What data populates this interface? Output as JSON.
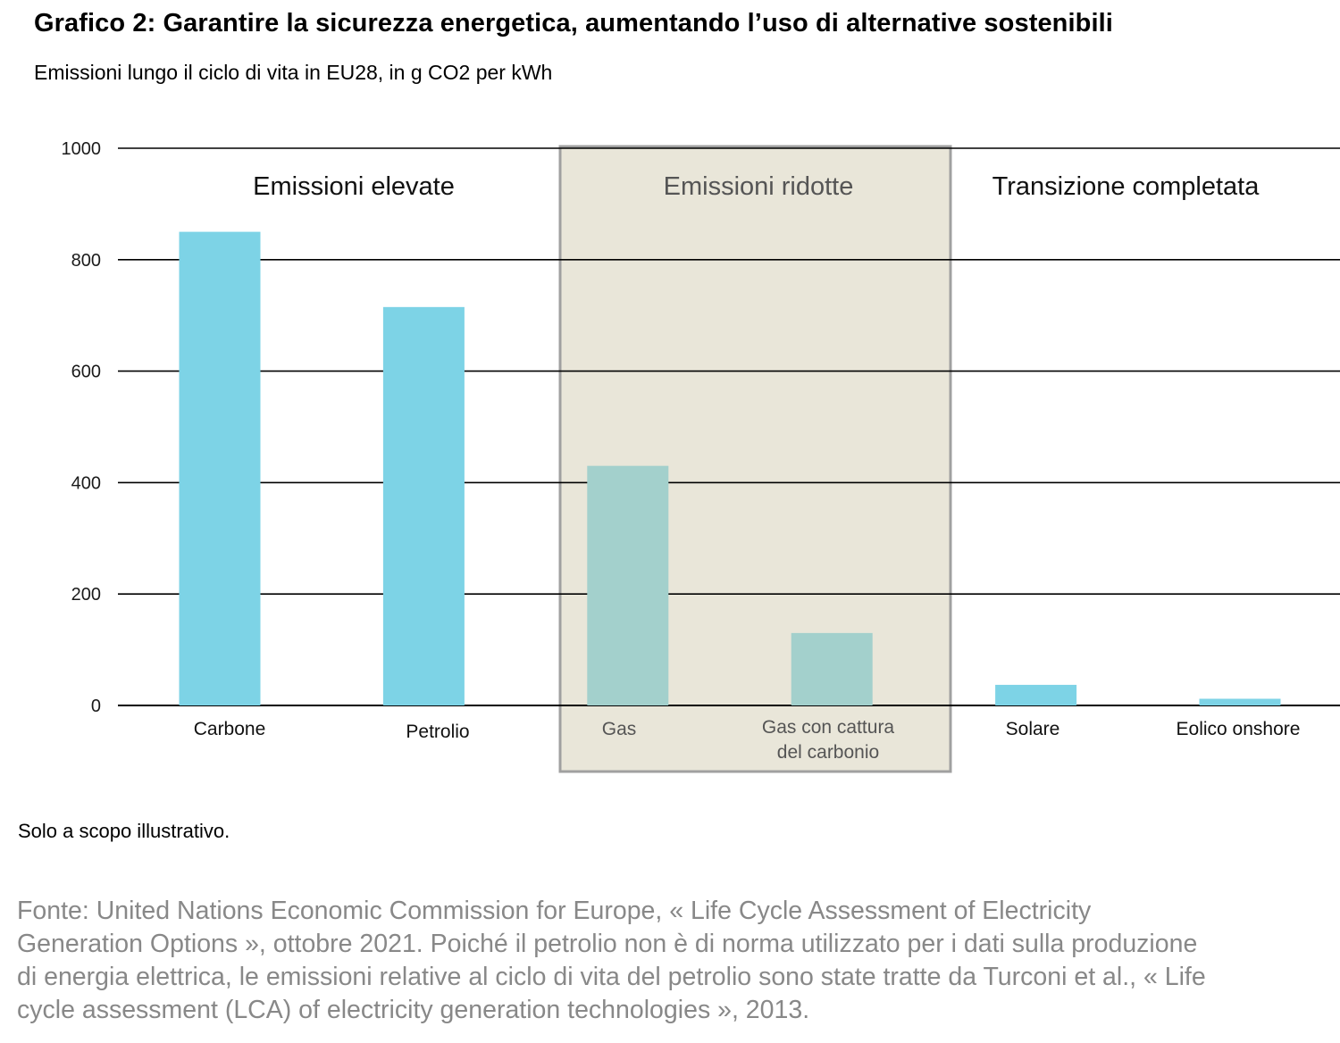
{
  "title": "Grafico 2: Garantire la sicurezza energetica, aumentando l’uso di alternative sostenibili",
  "subtitle": "Emissioni lungo il ciclo di vita in EU28, in g CO2 per kWh",
  "note": "Solo a scopo illustrativo.",
  "source": "Fonte: United Nations Economic Commission for Europe, « Life Cycle Assessment of Electricity Generation Options », ottobre 2021. Poiché il petrolio non è di norma utilizzato per i dati sulla produzione di energia elettrica, le emissioni relative al ciclo di vita del petrolio sono state tratte da Turconi et al., « Life cycle assessment (LCA) of electricity generation technologies », 2013.",
  "colors": {
    "bar": "#7dd3e6",
    "bar_muted": "#a3d0cc",
    "highlight_bg": "#e9e6d9",
    "highlight_border": "#a0a0a0",
    "grid": "#000000"
  },
  "chart_data": {
    "type": "bar",
    "categories": [
      "Carbone",
      "Petrolio",
      "Gas",
      "Gas con cattura del carbonio",
      "Solare",
      "Eolico onshore"
    ],
    "category_lines": [
      [
        "Carbone"
      ],
      [
        "Petrolio"
      ],
      [
        "Gas"
      ],
      [
        "Gas con cattura",
        "del carbonio"
      ],
      [
        "Solare"
      ],
      [
        "Eolico onshore"
      ]
    ],
    "values": [
      850,
      715,
      430,
      130,
      37,
      12
    ],
    "ylim": [
      0,
      1000
    ],
    "yticks": [
      0,
      200,
      400,
      600,
      800,
      1000
    ],
    "grid": true,
    "zones": [
      {
        "label": "Emissioni elevate",
        "categories": [
          "Carbone",
          "Petrolio"
        ],
        "highlight": false
      },
      {
        "label": "Emissioni ridotte",
        "categories": [
          "Gas",
          "Gas con cattura del carbonio"
        ],
        "highlight": true
      },
      {
        "label": "Transizione completata",
        "categories": [
          "Solare",
          "Eolico onshore"
        ],
        "highlight": false
      }
    ]
  }
}
